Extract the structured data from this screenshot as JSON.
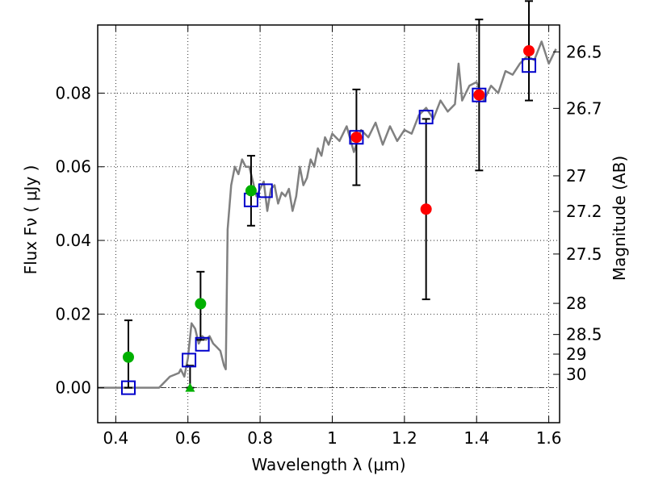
{
  "chart_data": {
    "type": "scatter",
    "xlabel": "Wavelength  λ (μm)",
    "ylabel_left": "Flux  Fν  ( μJy )",
    "ylabel_right": "Magnitude (AB)",
    "xlim": [
      0.35,
      1.63
    ],
    "ylim": [
      -0.0095,
      0.0985
    ],
    "x_ticks": [
      {
        "value": 0.4,
        "label": "0.4"
      },
      {
        "value": 0.6,
        "label": "0.6"
      },
      {
        "value": 0.8,
        "label": "0.8"
      },
      {
        "value": 1.0,
        "label": "1"
      },
      {
        "value": 1.2,
        "label": "1.2"
      },
      {
        "value": 1.4,
        "label": "1.4"
      },
      {
        "value": 1.6,
        "label": "1.6"
      }
    ],
    "y_ticks": [
      {
        "value": 0.0,
        "label": "0.00"
      },
      {
        "value": 0.02,
        "label": "0.02"
      },
      {
        "value": 0.04,
        "label": "0.04"
      },
      {
        "value": 0.06,
        "label": "0.06"
      },
      {
        "value": 0.08,
        "label": "0.08"
      }
    ],
    "mag_ticks": [
      {
        "value": 26.5,
        "label": "26.5"
      },
      {
        "value": 26.7,
        "label": "26.7"
      },
      {
        "value": 27.0,
        "label": "27"
      },
      {
        "value": 27.2,
        "label": "27.2"
      },
      {
        "value": 27.5,
        "label": "27.5"
      },
      {
        "value": 28.0,
        "label": "28"
      },
      {
        "value": 28.5,
        "label": "28.5"
      },
      {
        "value": 29.0,
        "label": "29"
      },
      {
        "value": 30.0,
        "label": "30"
      }
    ],
    "grid": true,
    "zero_line": true,
    "model_spectrum": {
      "color": "#808080",
      "x": [
        0.35,
        0.52,
        0.55,
        0.575,
        0.58,
        0.59,
        0.6,
        0.61,
        0.62,
        0.63,
        0.64,
        0.65,
        0.66,
        0.67,
        0.68,
        0.69,
        0.7,
        0.705,
        0.71,
        0.72,
        0.73,
        0.74,
        0.75,
        0.76,
        0.77,
        0.78,
        0.79,
        0.8,
        0.81,
        0.82,
        0.83,
        0.84,
        0.85,
        0.86,
        0.87,
        0.88,
        0.89,
        0.9,
        0.91,
        0.92,
        0.93,
        0.94,
        0.95,
        0.96,
        0.97,
        0.98,
        0.99,
        1.0,
        1.02,
        1.04,
        1.06,
        1.08,
        1.1,
        1.12,
        1.14,
        1.16,
        1.18,
        1.2,
        1.22,
        1.24,
        1.26,
        1.28,
        1.3,
        1.32,
        1.34,
        1.35,
        1.36,
        1.38,
        1.4,
        1.42,
        1.44,
        1.46,
        1.48,
        1.5,
        1.52,
        1.54,
        1.56,
        1.58,
        1.6,
        1.62
      ],
      "y": [
        0.0,
        0.0,
        0.003,
        0.004,
        0.005,
        0.003,
        0.008,
        0.0175,
        0.016,
        0.012,
        0.014,
        0.013,
        0.014,
        0.012,
        0.011,
        0.01,
        0.006,
        0.005,
        0.043,
        0.055,
        0.06,
        0.058,
        0.062,
        0.06,
        0.06,
        0.056,
        0.052,
        0.054,
        0.056,
        0.048,
        0.054,
        0.055,
        0.05,
        0.053,
        0.052,
        0.054,
        0.048,
        0.052,
        0.06,
        0.055,
        0.057,
        0.062,
        0.06,
        0.065,
        0.063,
        0.068,
        0.066,
        0.069,
        0.067,
        0.071,
        0.064,
        0.07,
        0.068,
        0.072,
        0.066,
        0.071,
        0.067,
        0.07,
        0.069,
        0.074,
        0.076,
        0.073,
        0.078,
        0.075,
        0.077,
        0.088,
        0.078,
        0.082,
        0.083,
        0.078,
        0.082,
        0.08,
        0.086,
        0.085,
        0.088,
        0.09,
        0.089,
        0.094,
        0.088,
        0.092
      ]
    },
    "red_points": {
      "color": "#ff0000",
      "points": [
        {
          "x": 1.067,
          "y": 0.068,
          "err_low": 0.013,
          "err_high": 0.013
        },
        {
          "x": 1.26,
          "y": 0.0485,
          "err_low": 0.0245,
          "err_high": 0.0245
        },
        {
          "x": 1.407,
          "y": 0.0795,
          "err_low": 0.0205,
          "err_high": 0.0205
        },
        {
          "x": 1.545,
          "y": 0.0915,
          "err_low": 0.0135,
          "err_high": 0.0135
        }
      ]
    },
    "green_points": {
      "color": "#00b000",
      "points": [
        {
          "x": 0.435,
          "y": 0.0083,
          "err_low": 0.0,
          "err_high": 0.0
        },
        {
          "x": 0.635,
          "y": 0.0228,
          "err_low": 0.0,
          "err_high": 0.0
        },
        {
          "x": 0.775,
          "y": 0.0535,
          "err_low": 0.0,
          "err_high": 0.0
        }
      ]
    },
    "green_triangle": {
      "x": 0.606,
      "y": 0.0
    },
    "black_errorbars": [
      {
        "x": 0.435,
        "low": 0.0,
        "high": 0.0183
      },
      {
        "x": 0.606,
        "low": 0.0,
        "high": 0.006
      },
      {
        "x": 0.635,
        "low": 0.013,
        "high": 0.0315
      },
      {
        "x": 0.775,
        "low": 0.044,
        "high": 0.063
      }
    ],
    "model_bands": {
      "color": "#0000cc",
      "points": [
        {
          "x": 0.435,
          "y": 0.0
        },
        {
          "x": 0.603,
          "y": 0.0075
        },
        {
          "x": 0.64,
          "y": 0.0118
        },
        {
          "x": 0.775,
          "y": 0.051
        },
        {
          "x": 0.815,
          "y": 0.0535
        },
        {
          "x": 1.067,
          "y": 0.068
        },
        {
          "x": 1.26,
          "y": 0.0735
        },
        {
          "x": 1.407,
          "y": 0.0795
        },
        {
          "x": 1.545,
          "y": 0.0875
        }
      ]
    }
  }
}
